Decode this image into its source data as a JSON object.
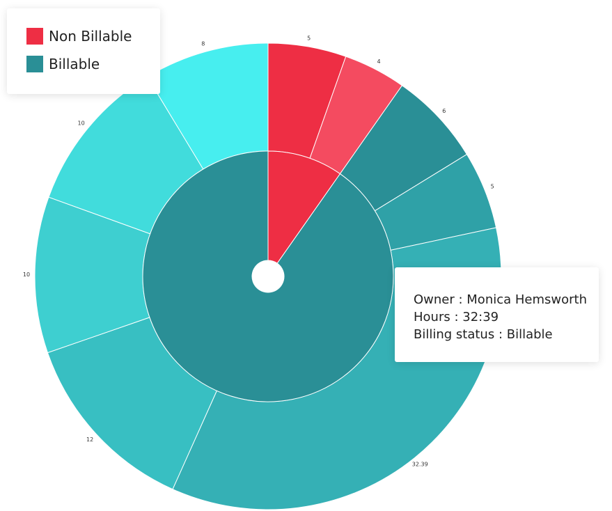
{
  "chart_data": {
    "type": "sunburst",
    "series": [
      {
        "name": "Non Billable",
        "color": "#ee2e44",
        "values": [
          5,
          4
        ],
        "colors": [
          "#ee2e44",
          "#f44b60"
        ]
      },
      {
        "name": "Billable",
        "color": "#2a8f96",
        "values": [
          6,
          5,
          32.39,
          12,
          10,
          10,
          8
        ],
        "colors": [
          "#2a8f96",
          "#2fa1a7",
          "#35b0b5",
          "#38bfc2",
          "#3ecfd0",
          "#41dcdc",
          "#47eeef"
        ]
      }
    ],
    "tooltip": [
      "Owner : Monica Hemsworth",
      "Hours : 32:39",
      "Billing status : Billable"
    ]
  }
}
